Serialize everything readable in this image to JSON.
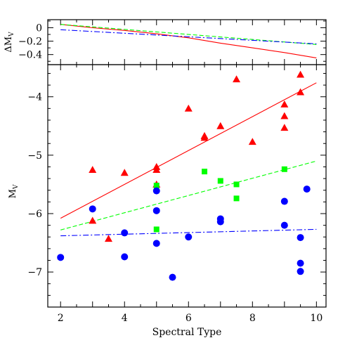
{
  "chart_data": [
    {
      "type": "line",
      "panel": "top",
      "ylabel": "ΔM",
      "ylabel_sub": "V",
      "xlim": [
        1.6,
        10.3
      ],
      "ylim": [
        -0.55,
        0.12
      ],
      "yticks": [
        0,
        -0.2,
        -0.4
      ],
      "ytick_labels": [
        "0",
        "−0.2",
        "−0.4"
      ],
      "series": [
        {
          "style": "solid",
          "color": "#ff0000",
          "x": [
            2,
            3,
            4,
            5,
            6,
            7,
            8,
            9,
            10
          ],
          "y": [
            0.05,
            0.0,
            -0.04,
            -0.09,
            -0.15,
            -0.23,
            -0.3,
            -0.37,
            -0.45
          ]
        },
        {
          "style": "dashed",
          "color": "#00ff00",
          "x": [
            2,
            10
          ],
          "y": [
            0.05,
            -0.25
          ]
        },
        {
          "style": "dashdot",
          "color": "#0000ff",
          "x": [
            2,
            10
          ],
          "y": [
            -0.03,
            -0.24
          ]
        }
      ]
    },
    {
      "type": "scatter",
      "panel": "bottom",
      "xlabel": "Spectral Type",
      "ylabel": "M",
      "ylabel_sub": "V",
      "xlim": [
        1.6,
        10.3
      ],
      "ylim": [
        -7.6,
        -3.45
      ],
      "xticks": [
        2,
        4,
        6,
        8,
        10
      ],
      "xtick_labels": [
        "2",
        "4",
        "6",
        "8",
        "10"
      ],
      "yticks": [
        -4,
        -5,
        -6,
        -7
      ],
      "ytick_labels": [
        "−4",
        "−5",
        "−6",
        "−7"
      ],
      "series": [
        {
          "marker": "triangle",
          "color": "#ff0000",
          "x": [
            3,
            3,
            3.5,
            4,
            5,
            5,
            5,
            6,
            6.5,
            6.5,
            7,
            7.5,
            8,
            9,
            9,
            9,
            9.5,
            9.5
          ],
          "y": [
            -5.25,
            -6.12,
            -6.43,
            -5.3,
            -5.2,
            -5.25,
            -5.5,
            -4.2,
            -4.67,
            -4.7,
            -4.5,
            -3.7,
            -4.77,
            -4.13,
            -4.33,
            -4.53,
            -3.62,
            -3.92
          ]
        },
        {
          "marker": "square",
          "color": "#00ff00",
          "x": [
            5,
            5,
            6.5,
            7,
            7.5,
            7.5,
            9
          ],
          "y": [
            -5.52,
            -6.27,
            -5.28,
            -5.44,
            -5.5,
            -5.74,
            -5.24
          ]
        },
        {
          "marker": "circle",
          "color": "#0000ff",
          "x": [
            2,
            3,
            4,
            4,
            5,
            5,
            5,
            5.5,
            6,
            7,
            7,
            9,
            9,
            9.5,
            9.5,
            9.5,
            9.7
          ],
          "y": [
            -6.75,
            -5.92,
            -6.33,
            -6.74,
            -5.61,
            -5.95,
            -6.51,
            -7.09,
            -6.4,
            -6.09,
            -6.14,
            -5.79,
            -6.2,
            -6.41,
            -6.85,
            -6.99,
            -5.58
          ]
        }
      ],
      "fit_lines": [
        {
          "style": "solid",
          "color": "#ff0000",
          "x": [
            2,
            10
          ],
          "y": [
            -6.08,
            -3.76
          ]
        },
        {
          "style": "dashed",
          "color": "#00ff00",
          "x": [
            2,
            10
          ],
          "y": [
            -6.28,
            -5.1
          ]
        },
        {
          "style": "dashdot",
          "color": "#0000ff",
          "x": [
            2,
            10
          ],
          "y": [
            -6.38,
            -6.27
          ]
        }
      ]
    }
  ]
}
